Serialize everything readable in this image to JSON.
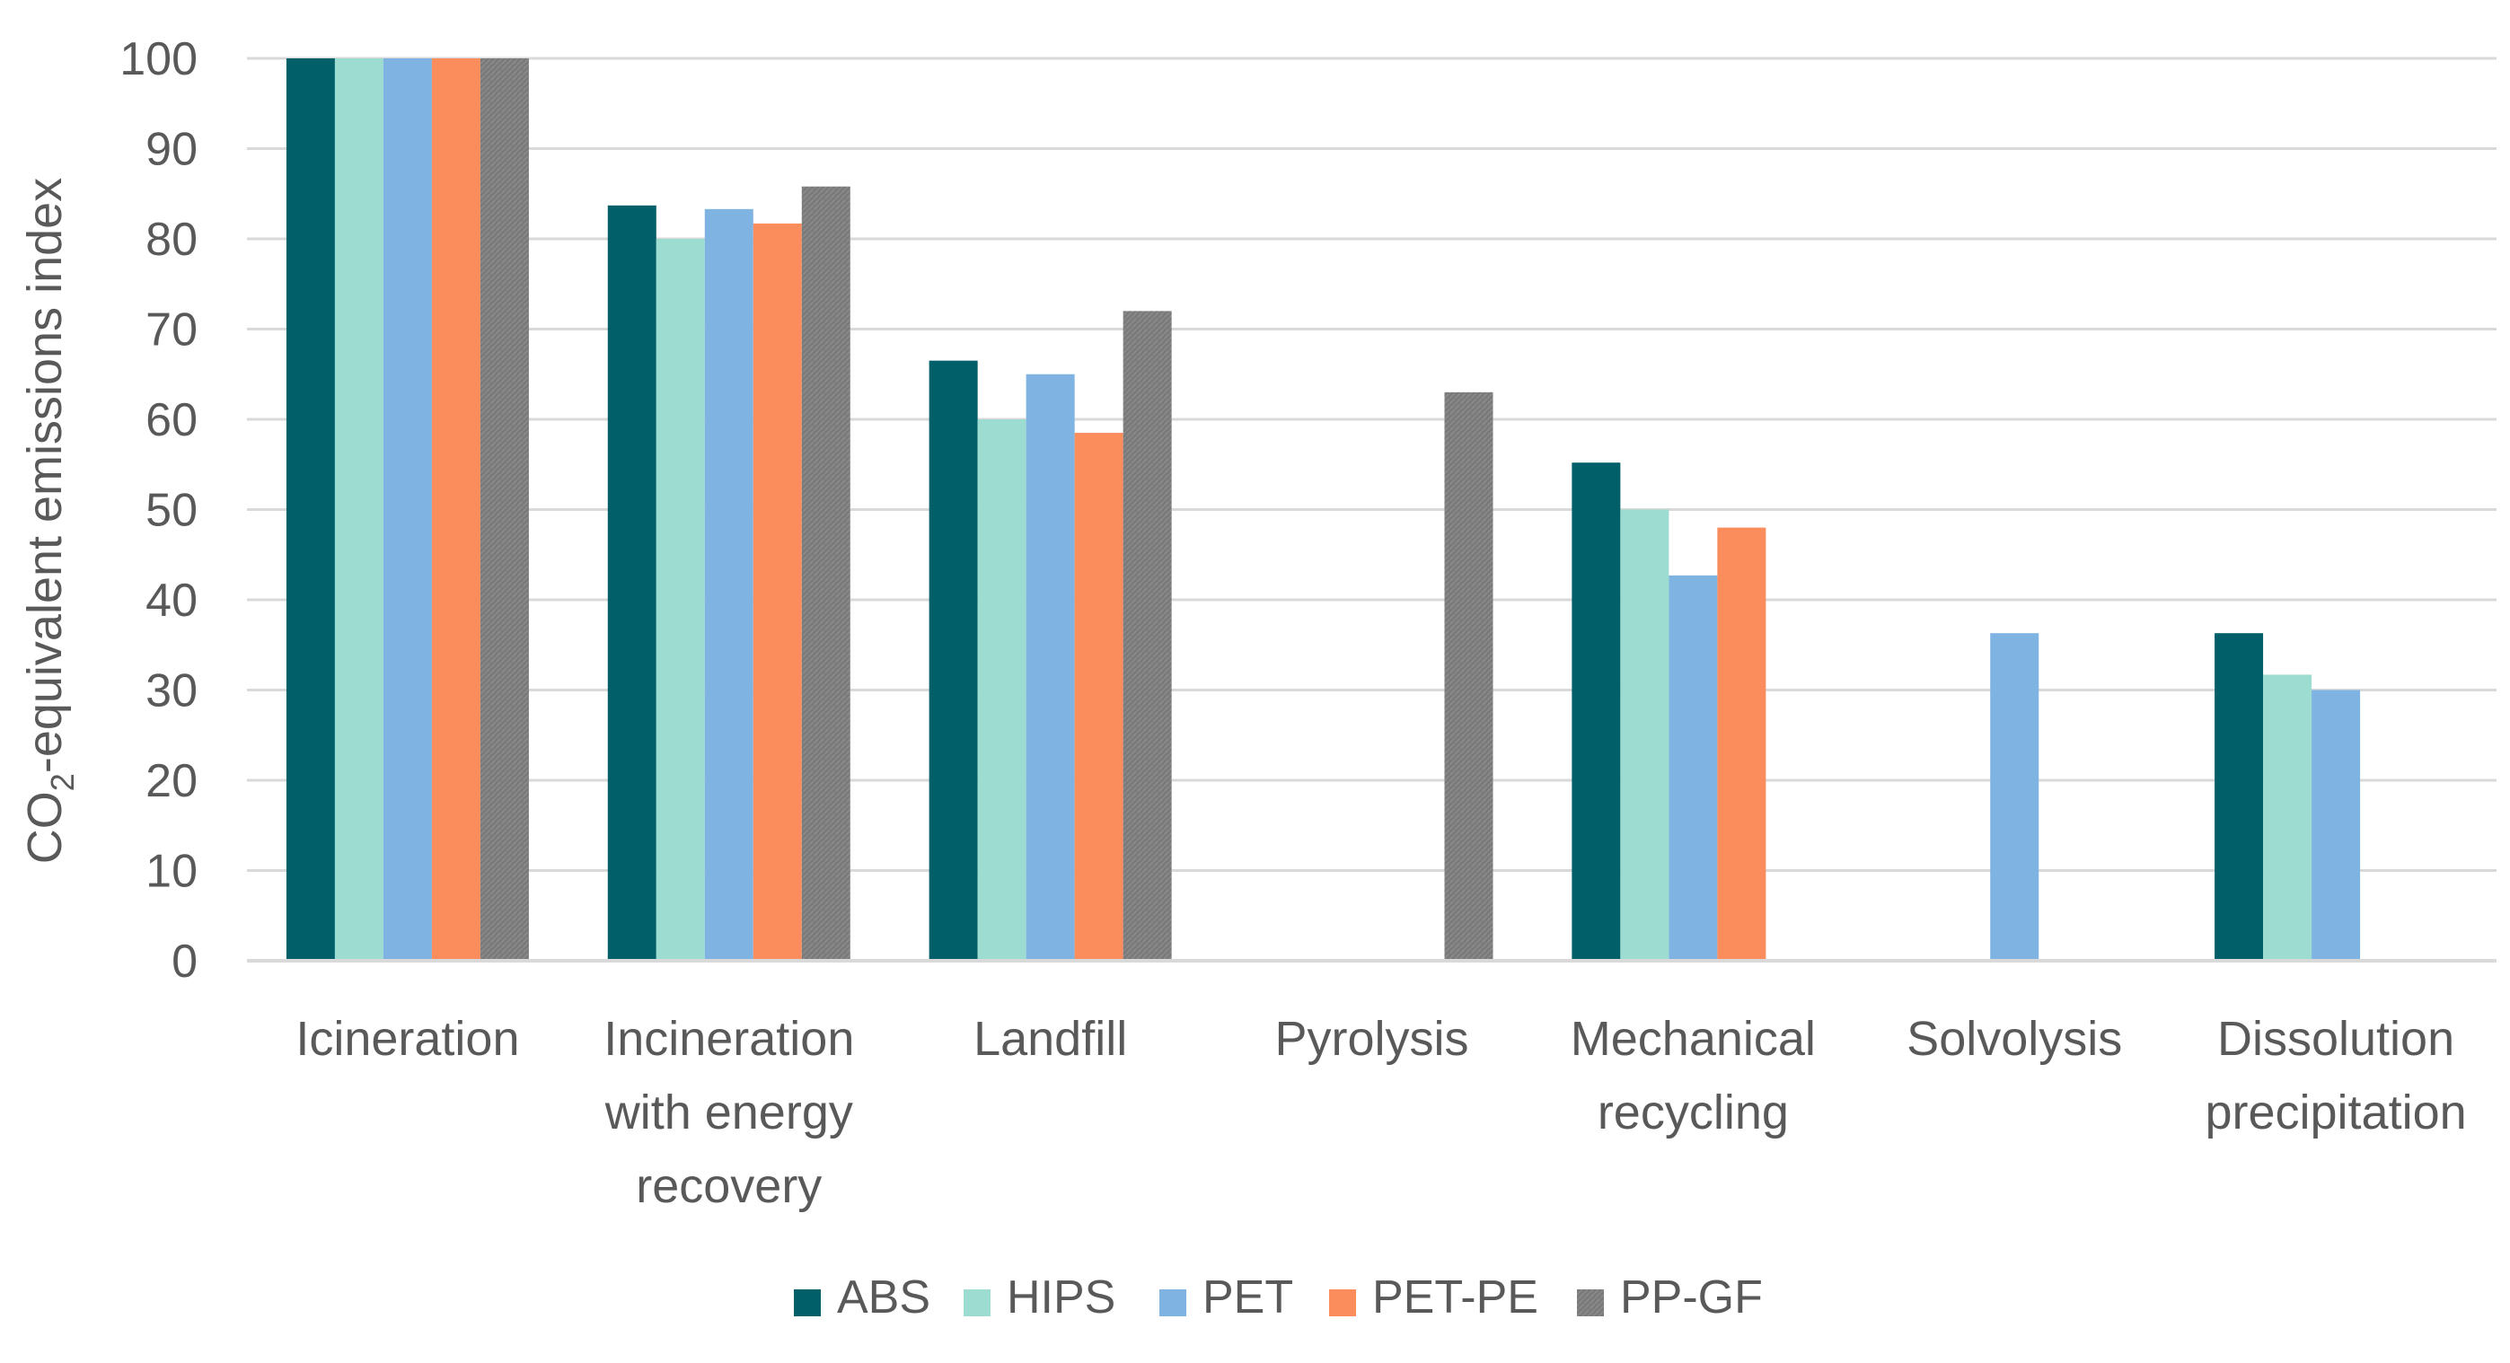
{
  "chart_data": {
    "type": "bar",
    "title": "",
    "xlabel": "",
    "ylabel": "CO2-equivalent emissions index",
    "ylabel_main": "CO",
    "ylabel_sub": "2",
    "ylabel_rest": "-equivalent  emissions index",
    "ylim": [
      0,
      100
    ],
    "yticks": [
      0,
      10,
      20,
      30,
      40,
      50,
      60,
      70,
      80,
      90,
      100
    ],
    "grid": true,
    "legend_position": "bottom",
    "categories": [
      [
        "Icineration"
      ],
      [
        "Incineration",
        "with energy",
        "recovery"
      ],
      [
        "Landfill"
      ],
      [
        "Pyrolysis"
      ],
      [
        "Mechanical",
        "recycling"
      ],
      [
        "Solvolysis"
      ],
      [
        "Dissolution",
        "precipitation"
      ]
    ],
    "series": [
      {
        "name": "ABS",
        "color": "#005f69",
        "values": [
          100,
          83.7,
          66.5,
          null,
          55.2,
          null,
          36.3
        ]
      },
      {
        "name": "HIPS",
        "color": "#9ddcd1",
        "values": [
          100,
          80.0,
          60.0,
          null,
          50.0,
          null,
          31.7
        ]
      },
      {
        "name": "PET",
        "color": "#7eb3e2",
        "values": [
          100,
          83.3,
          65.0,
          null,
          42.7,
          36.3,
          30.0
        ]
      },
      {
        "name": "PET-PE",
        "color": "#fb8c5c",
        "values": [
          100,
          81.7,
          58.5,
          null,
          48.0,
          null,
          null
        ]
      },
      {
        "name": "PP-GF",
        "color": "#7a7a7a",
        "values": [
          100,
          85.8,
          72.0,
          63.0,
          null,
          null,
          null
        ]
      }
    ]
  }
}
